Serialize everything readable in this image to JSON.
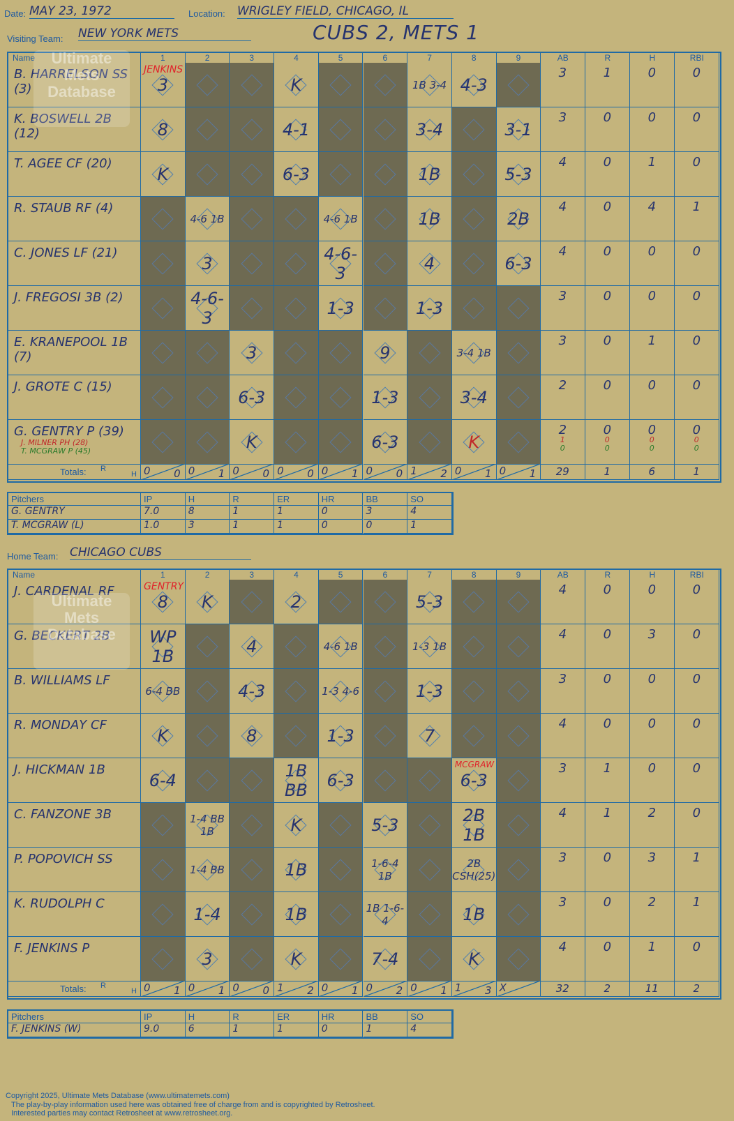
{
  "header": {
    "date_label": "Date:",
    "date": "MAY 23, 1972",
    "location_label": "Location:",
    "location": "WRIGLEY FIELD, CHICAGO, IL",
    "visiting_label": "Visiting Team:",
    "visiting_team": "NEW YORK METS",
    "title": "CUBS 2, METS 1",
    "home_label": "Home Team:",
    "home_team": "CHICAGO CUBS"
  },
  "columns": [
    "Name",
    "1",
    "2",
    "3",
    "4",
    "5",
    "6",
    "7",
    "8",
    "9",
    "AB",
    "R",
    "H",
    "RBI"
  ],
  "totals_label": "Totals:",
  "rh_label": [
    "R",
    "H"
  ],
  "watermark": "Ultimate Mets Database",
  "visitors": {
    "starting_pitcher_note": "JENKINS",
    "rows": [
      {
        "name": "B. HARRELSON SS (3)",
        "ab": "3",
        "r": "1",
        "h": "0",
        "rbi": "0"
      },
      {
        "name": "K. BOSWELL 2B (12)",
        "ab": "3",
        "r": "0",
        "h": "0",
        "rbi": "0"
      },
      {
        "name": "T. AGEE CF (20)",
        "ab": "4",
        "r": "0",
        "h": "1",
        "rbi": "0"
      },
      {
        "name": "R. STAUB RF (4)",
        "ab": "4",
        "r": "0",
        "h": "4",
        "rbi": "1"
      },
      {
        "name": "C. JONES LF (21)",
        "ab": "4",
        "r": "0",
        "h": "0",
        "rbi": "0"
      },
      {
        "name": "J. FREGOSI 3B (2)",
        "ab": "3",
        "r": "0",
        "h": "0",
        "rbi": "0"
      },
      {
        "name": "E. KRANEPOOL 1B (7)",
        "ab": "3",
        "r": "0",
        "h": "1",
        "rbi": "0"
      },
      {
        "name": "J. GROTE C (15)",
        "ab": "2",
        "r": "0",
        "h": "0",
        "rbi": "0"
      },
      {
        "name": "G. GENTRY P (39)",
        "ab": "2",
        "r": "0",
        "h": "0",
        "rbi": "0"
      }
    ],
    "subs": [
      {
        "name": "J. MILNER PH (28)",
        "color": "#c0282a",
        "ab": "1",
        "r": "0",
        "h": "0",
        "rbi": "0"
      },
      {
        "name": "T. MCGRAW P (45)",
        "color": "#2a7a2a",
        "ab": "0",
        "r": "0",
        "h": "0",
        "rbi": "0"
      }
    ],
    "plays": [
      [
        "3",
        "",
        "",
        "K",
        "",
        "",
        "1B 3-4",
        "4-3",
        ""
      ],
      [
        "8",
        "",
        "",
        "4-1",
        "",
        "",
        "3-4",
        "",
        "3-1"
      ],
      [
        "K",
        "",
        "",
        "6-3",
        "",
        "",
        "1B",
        "",
        "5-3"
      ],
      [
        "",
        "4-6 1B",
        "",
        "",
        "4-6 1B",
        "",
        "1B",
        "",
        "2B"
      ],
      [
        "",
        "3",
        "",
        "",
        "4-6-3",
        "",
        "4",
        "",
        "6-3"
      ],
      [
        "",
        "4-6-3",
        "",
        "",
        "1-3",
        "",
        "1-3",
        "",
        ""
      ],
      [
        "",
        "",
        "3",
        "",
        "",
        "9",
        "",
        "3-4 1B",
        ""
      ],
      [
        "",
        "",
        "6-3",
        "",
        "",
        "1-3",
        "",
        "3-4",
        ""
      ],
      [
        "",
        "",
        "K",
        "",
        "",
        "6-3",
        "",
        "K",
        ""
      ]
    ],
    "dark": [
      [
        0,
        1,
        1,
        0,
        1,
        1,
        0,
        0,
        1
      ],
      [
        0,
        1,
        1,
        0,
        1,
        1,
        0,
        1,
        0
      ],
      [
        0,
        1,
        1,
        0,
        1,
        1,
        0,
        1,
        0
      ],
      [
        1,
        0,
        1,
        1,
        0,
        1,
        0,
        1,
        0
      ],
      [
        1,
        0,
        1,
        1,
        0,
        1,
        0,
        1,
        0
      ],
      [
        1,
        0,
        1,
        1,
        0,
        1,
        0,
        1,
        1
      ],
      [
        1,
        1,
        0,
        1,
        1,
        0,
        1,
        0,
        1
      ],
      [
        1,
        1,
        0,
        1,
        1,
        0,
        1,
        0,
        1
      ],
      [
        1,
        1,
        0,
        1,
        1,
        0,
        1,
        0,
        1
      ]
    ],
    "totals": {
      "innings": [
        [
          "0",
          "0"
        ],
        [
          "0",
          "1"
        ],
        [
          "0",
          "0"
        ],
        [
          "0",
          "0"
        ],
        [
          "0",
          "1"
        ],
        [
          "0",
          "0"
        ],
        [
          "1",
          "2"
        ],
        [
          "0",
          "1"
        ],
        [
          "0",
          "1"
        ]
      ],
      "ab": "29",
      "r": "1",
      "h": "6",
      "rbi": "1"
    },
    "pitchers": [
      {
        "name": "G. GENTRY",
        "ip": "7.0",
        "h": "8",
        "r": "1",
        "er": "1",
        "hr": "0",
        "bb": "3",
        "so": "4"
      },
      {
        "name": "T. MCGRAW (L)",
        "ip": "1.0",
        "h": "3",
        "r": "1",
        "er": "1",
        "hr": "0",
        "bb": "0",
        "so": "1"
      }
    ]
  },
  "home": {
    "starting_pitcher_note": "GENTRY",
    "relief_note": "MCGRAW",
    "rows": [
      {
        "name": "J. CARDENAL RF",
        "ab": "4",
        "r": "0",
        "h": "0",
        "rbi": "0"
      },
      {
        "name": "G. BECKERT 2B",
        "ab": "4",
        "r": "0",
        "h": "3",
        "rbi": "0"
      },
      {
        "name": "B. WILLIAMS LF",
        "ab": "3",
        "r": "0",
        "h": "0",
        "rbi": "0"
      },
      {
        "name": "R. MONDAY CF",
        "ab": "4",
        "r": "0",
        "h": "0",
        "rbi": "0"
      },
      {
        "name": "J. HICKMAN 1B",
        "ab": "3",
        "r": "1",
        "h": "0",
        "rbi": "0"
      },
      {
        "name": "C. FANZONE 3B",
        "ab": "4",
        "r": "1",
        "h": "2",
        "rbi": "0"
      },
      {
        "name": "P. POPOVICH SS",
        "ab": "3",
        "r": "0",
        "h": "3",
        "rbi": "1"
      },
      {
        "name": "K. RUDOLPH C",
        "ab": "3",
        "r": "0",
        "h": "2",
        "rbi": "1"
      },
      {
        "name": "F. JENKINS P",
        "ab": "4",
        "r": "0",
        "h": "1",
        "rbi": "0"
      }
    ],
    "plays": [
      [
        "8",
        "K",
        "",
        "2",
        "",
        "",
        "5-3",
        "",
        ""
      ],
      [
        "WP 1B",
        "",
        "4",
        "",
        "4-6 1B",
        "",
        "1-3 1B",
        "",
        ""
      ],
      [
        "6-4 BB",
        "",
        "4-3",
        "",
        "1-3 4-6",
        "",
        "1-3",
        "",
        ""
      ],
      [
        "K",
        "",
        "8",
        "",
        "1-3",
        "",
        "7",
        "",
        ""
      ],
      [
        "6-4",
        "",
        "",
        "1B BB",
        "6-3",
        "",
        "",
        "6-3",
        ""
      ],
      [
        "",
        "1-4 BB 1B",
        "",
        "K",
        "",
        "5-3",
        "",
        "2B 1B",
        ""
      ],
      [
        "",
        "1-4 BB",
        "",
        "1B",
        "",
        "1-6-4 1B",
        "",
        "2B CSH(25)",
        ""
      ],
      [
        "",
        "1-4",
        "",
        "1B",
        "",
        "1B 1-6-4",
        "",
        "1B",
        ""
      ],
      [
        "",
        "3",
        "",
        "K",
        "",
        "7-4",
        "",
        "K",
        ""
      ]
    ],
    "dark": [
      [
        0,
        0,
        1,
        0,
        1,
        1,
        0,
        1,
        1
      ],
      [
        0,
        1,
        0,
        1,
        0,
        1,
        0,
        1,
        1
      ],
      [
        0,
        1,
        0,
        1,
        0,
        1,
        0,
        1,
        1
      ],
      [
        0,
        1,
        0,
        1,
        0,
        1,
        0,
        1,
        1
      ],
      [
        0,
        1,
        1,
        0,
        0,
        1,
        1,
        0,
        1
      ],
      [
        1,
        0,
        1,
        0,
        1,
        0,
        1,
        0,
        1
      ],
      [
        1,
        0,
        1,
        0,
        1,
        0,
        1,
        0,
        1
      ],
      [
        1,
        0,
        1,
        0,
        1,
        0,
        1,
        0,
        1
      ],
      [
        1,
        0,
        1,
        0,
        1,
        0,
        1,
        0,
        1
      ]
    ],
    "totals": {
      "innings": [
        [
          "0",
          "1"
        ],
        [
          "0",
          "1"
        ],
        [
          "0",
          "0"
        ],
        [
          "1",
          "2"
        ],
        [
          "0",
          "1"
        ],
        [
          "0",
          "2"
        ],
        [
          "0",
          "1"
        ],
        [
          "1",
          "3"
        ],
        [
          "X",
          ""
        ]
      ],
      "ab": "32",
      "r": "2",
      "h": "11",
      "rbi": "2"
    },
    "pitchers": [
      {
        "name": "F. JENKINS (W)",
        "ip": "9.0",
        "h": "6",
        "r": "1",
        "er": "1",
        "hr": "0",
        "bb": "1",
        "so": "4"
      }
    ]
  },
  "pitcher_columns": [
    "Pitchers",
    "IP",
    "H",
    "R",
    "ER",
    "HR",
    "BB",
    "SO"
  ],
  "footer": {
    "line1": "Copyright 2025, Ultimate Mets Database (www.ultimatemets.com)",
    "line2": "The play-by-play information used here was obtained free of charge from and is copyrighted by Retrosheet.",
    "line3": "Interested parties may contact Retrosheet at www.retrosheet.org."
  }
}
